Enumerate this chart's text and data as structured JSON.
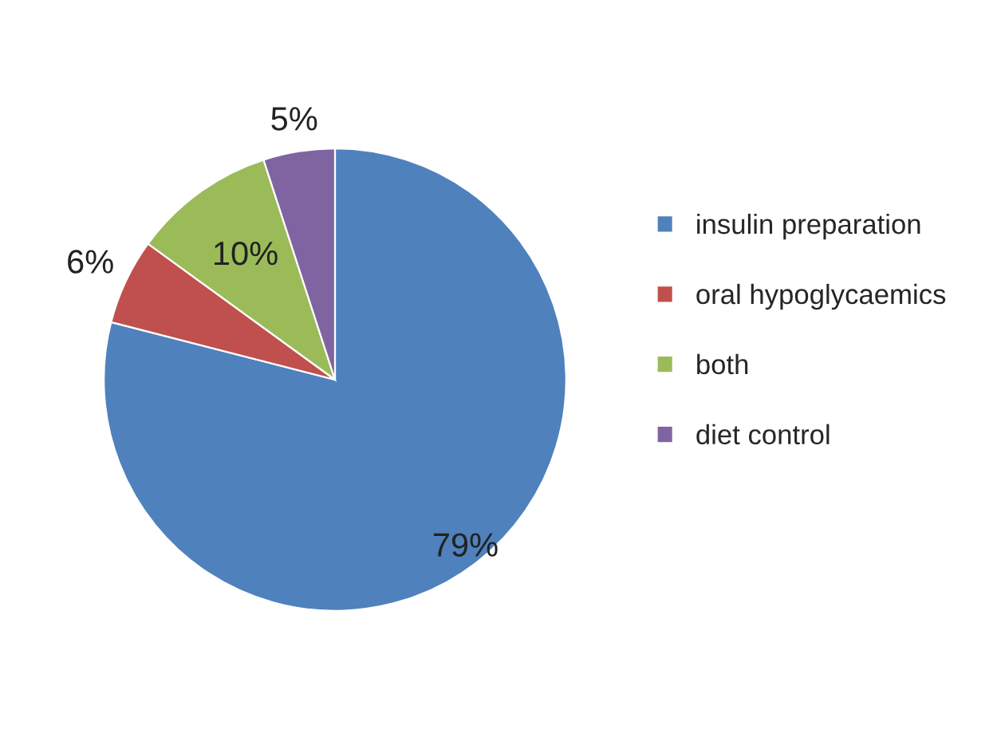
{
  "chart_data": {
    "type": "pie",
    "categories": [
      "insulin preparation",
      "oral hypoglycaemics",
      "both",
      "diet control"
    ],
    "values": [
      79,
      6,
      10,
      5
    ],
    "colors": [
      "#4f81bd",
      "#c0504d",
      "#9bbb59",
      "#8064a2"
    ],
    "value_labels": [
      "79%",
      "6%",
      "10%",
      "5%"
    ],
    "legend": "right"
  }
}
